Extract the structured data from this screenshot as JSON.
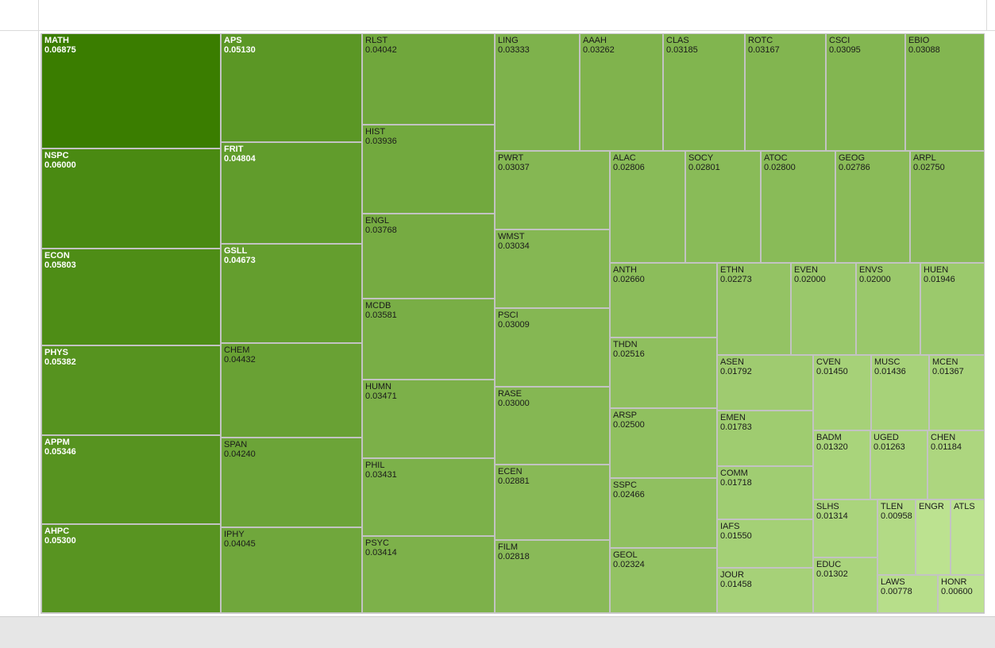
{
  "chart_data": {
    "type": "treemap",
    "color_scale": {
      "low": "#bce290",
      "high": "#3a7d00"
    },
    "cells": [
      {
        "label": "MATH",
        "value": "0.06875"
      },
      {
        "label": "NSPC",
        "value": "0.06000"
      },
      {
        "label": "ECON",
        "value": "0.05803"
      },
      {
        "label": "PHYS",
        "value": "0.05382"
      },
      {
        "label": "APPM",
        "value": "0.05346"
      },
      {
        "label": "AHPC",
        "value": "0.05300"
      },
      {
        "label": "APS",
        "value": "0.05130"
      },
      {
        "label": "FRIT",
        "value": "0.04804"
      },
      {
        "label": "GSLL",
        "value": "0.04673"
      },
      {
        "label": "CHEM",
        "value": "0.04432"
      },
      {
        "label": "SPAN",
        "value": "0.04240"
      },
      {
        "label": "IPHY",
        "value": "0.04045"
      },
      {
        "label": "RLST",
        "value": "0.04042"
      },
      {
        "label": "HIST",
        "value": "0.03936"
      },
      {
        "label": "ENGL",
        "value": "0.03768"
      },
      {
        "label": "MCDB",
        "value": "0.03581"
      },
      {
        "label": "HUMN",
        "value": "0.03471"
      },
      {
        "label": "PHIL",
        "value": "0.03431"
      },
      {
        "label": "PSYC",
        "value": "0.03414"
      },
      {
        "label": "LING",
        "value": "0.03333"
      },
      {
        "label": "AAAH",
        "value": "0.03262"
      },
      {
        "label": "CLAS",
        "value": "0.03185"
      },
      {
        "label": "ROTC",
        "value": "0.03167"
      },
      {
        "label": "CSCI",
        "value": "0.03095"
      },
      {
        "label": "EBIO",
        "value": "0.03088"
      },
      {
        "label": "PWRT",
        "value": "0.03037"
      },
      {
        "label": "WMST",
        "value": "0.03034"
      },
      {
        "label": "PSCI",
        "value": "0.03009"
      },
      {
        "label": "RASE",
        "value": "0.03000"
      },
      {
        "label": "ECEN",
        "value": "0.02881"
      },
      {
        "label": "FILM",
        "value": "0.02818"
      },
      {
        "label": "ALAC",
        "value": "0.02806"
      },
      {
        "label": "SOCY",
        "value": "0.02801"
      },
      {
        "label": "ATOC",
        "value": "0.02800"
      },
      {
        "label": "GEOG",
        "value": "0.02786"
      },
      {
        "label": "ARPL",
        "value": "0.02750"
      },
      {
        "label": "ANTH",
        "value": "0.02660"
      },
      {
        "label": "THDN",
        "value": "0.02516"
      },
      {
        "label": "ARSP",
        "value": "0.02500"
      },
      {
        "label": "SSPC",
        "value": "0.02466"
      },
      {
        "label": "GEOL",
        "value": "0.02324"
      },
      {
        "label": "ETHN",
        "value": "0.02273"
      },
      {
        "label": "EVEN",
        "value": "0.02000"
      },
      {
        "label": "ENVS",
        "value": "0.02000"
      },
      {
        "label": "HUEN",
        "value": "0.01946"
      },
      {
        "label": "ASEN",
        "value": "0.01792"
      },
      {
        "label": "EMEN",
        "value": "0.01783"
      },
      {
        "label": "COMM",
        "value": "0.01718"
      },
      {
        "label": "IAFS",
        "value": "0.01550"
      },
      {
        "label": "JOUR",
        "value": "0.01458"
      },
      {
        "label": "CVEN",
        "value": "0.01450"
      },
      {
        "label": "MUSC",
        "value": "0.01436"
      },
      {
        "label": "MCEN",
        "value": "0.01367"
      },
      {
        "label": "BADM",
        "value": "0.01320"
      },
      {
        "label": "SLHS",
        "value": "0.01314"
      },
      {
        "label": "EDUC",
        "value": "0.01302"
      },
      {
        "label": "UGED",
        "value": "0.01263"
      },
      {
        "label": "CHEN",
        "value": "0.01184"
      },
      {
        "label": "TLEN",
        "value": "0.00958"
      },
      {
        "label": "ENGR",
        "value": ""
      },
      {
        "label": "ATLS",
        "value": ""
      },
      {
        "label": "LAWS",
        "value": "0.00778"
      },
      {
        "label": "HONR",
        "value": "0.00600"
      }
    ]
  }
}
